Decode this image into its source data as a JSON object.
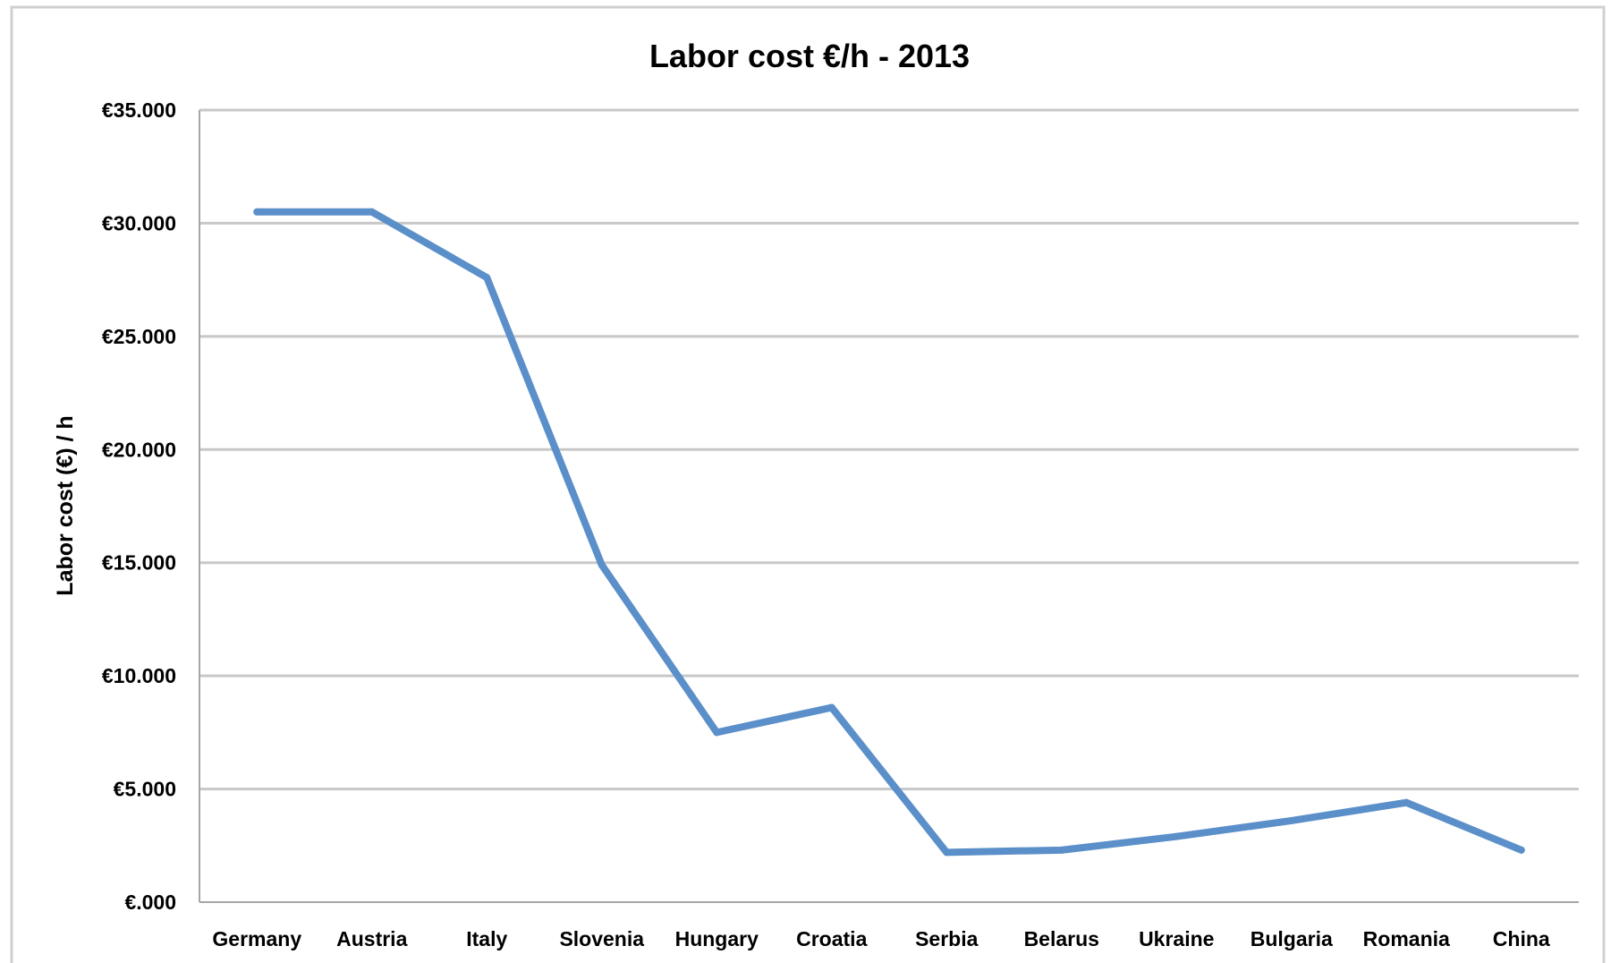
{
  "chart_data": {
    "type": "line",
    "title": "Labor cost €/h - 2013",
    "xlabel": "",
    "ylabel": "Labor cost (€) / h",
    "categories": [
      "Germany",
      "Austria",
      "Italy",
      "Slovenia",
      "Hungary",
      "Croatia",
      "Serbia",
      "Belarus",
      "Ukraine",
      "Bulgaria",
      "Romania",
      "China"
    ],
    "series": [
      {
        "values": [
          30.5,
          30.5,
          27.6,
          14.9,
          7.5,
          8.6,
          2.2,
          2.3,
          2.9,
          3.6,
          4.4,
          2.3
        ]
      }
    ],
    "ylim": [
      0,
      35
    ],
    "yticks": [
      0,
      5,
      10,
      15,
      20,
      25,
      30,
      35
    ],
    "ytick_labels": [
      "€.000",
      "€5.000",
      "€10.000",
      "€15.000",
      "€20.000",
      "€25.000",
      "€30.000",
      "€35.000"
    ],
    "grid": true,
    "legend": "none",
    "colors": {
      "line": "#5b8fc9",
      "grid": "#c8c8c8",
      "axis": "#a6a6a6",
      "border": "#d0d0d0"
    }
  }
}
